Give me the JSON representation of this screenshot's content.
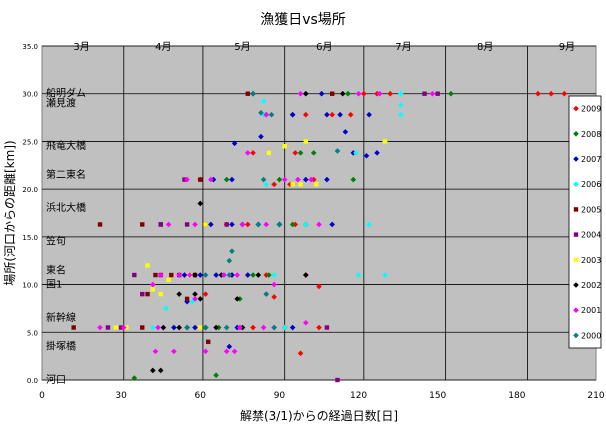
{
  "chart_data": {
    "type": "scatter",
    "title": "漁獲日vs場所",
    "xlabel": "解禁(3/1)からの経過日数[日]",
    "ylabel": "場所(河口からの距離[km])",
    "xlim": [
      0,
      210
    ],
    "ylim": [
      0,
      35
    ],
    "x_ticks": [
      "0",
      "30",
      "60",
      "90",
      "120",
      "150",
      "180",
      "210"
    ],
    "y_ticks": [
      "0.0",
      "5.0",
      "10.0",
      "15.0",
      "20.0",
      "25.0",
      "30.0",
      "35.0"
    ],
    "months": [
      {
        "label": "3月",
        "x": 15
      },
      {
        "label": "4月",
        "x": 46
      },
      {
        "label": "5月",
        "x": 76
      },
      {
        "label": "6月",
        "x": 107
      },
      {
        "label": "7月",
        "x": 137
      },
      {
        "label": "8月",
        "x": 168
      },
      {
        "label": "9月",
        "x": 199
      }
    ],
    "month_boundaries": [
      31,
      61,
      92,
      122,
      153,
      184
    ],
    "places": [
      {
        "label": "船明ダム",
        "y": 30.0
      },
      {
        "label": "瀬見渡",
        "y": 29.0
      },
      {
        "label": "飛竜大橋",
        "y": 24.5
      },
      {
        "label": "第二東名",
        "y": 21.5
      },
      {
        "label": "浜北大橋",
        "y": 18.0
      },
      {
        "label": "笠句",
        "y": 14.5
      },
      {
        "label": "東名",
        "y": 11.5
      },
      {
        "label": "国1",
        "y": 10.0
      },
      {
        "label": "新幹線",
        "y": 6.5
      },
      {
        "label": "掛塚橋",
        "y": 3.5
      },
      {
        "label": "河口",
        "y": 0.0
      }
    ],
    "legend_position": "right",
    "series": [
      {
        "name": "2009",
        "color": "#ff0000",
        "marker": "diamond",
        "points": [
          [
            75,
            5.5
          ],
          [
            80,
            5.5
          ],
          [
            92,
            5.5
          ],
          [
            105,
            5.5
          ],
          [
            62,
            9
          ],
          [
            88,
            8.7
          ],
          [
            100,
            11
          ],
          [
            85,
            11
          ],
          [
            70,
            16.3
          ],
          [
            78,
            16.3
          ],
          [
            96,
            16.3
          ],
          [
            88,
            20.5
          ],
          [
            94,
            20.5
          ],
          [
            80,
            23.8
          ],
          [
            96,
            23.8
          ],
          [
            100,
            27.8
          ],
          [
            110,
            27.8
          ],
          [
            117,
            27.8
          ],
          [
            122,
            30
          ],
          [
            127,
            30
          ],
          [
            132,
            30
          ],
          [
            188,
            30
          ],
          [
            193,
            30
          ],
          [
            198,
            30
          ],
          [
            98,
            2.8
          ],
          [
            105,
            9.8
          ],
          [
            72,
            11
          ],
          [
            60,
            21
          ],
          [
            103,
            21
          ]
        ]
      },
      {
        "name": "2008",
        "color": "#008000",
        "marker": "diamond",
        "points": [
          [
            35,
            0.2
          ],
          [
            66,
            0.5
          ],
          [
            67,
            5.5
          ],
          [
            75,
            8.5
          ],
          [
            80,
            11
          ],
          [
            86,
            11
          ],
          [
            95,
            16.3
          ],
          [
            100,
            16.3
          ],
          [
            98,
            23.8
          ],
          [
            103,
            23.8
          ],
          [
            85,
            27.8
          ],
          [
            95,
            27.8
          ],
          [
            90,
            21
          ],
          [
            118,
            21
          ],
          [
            155,
            30
          ],
          [
            116,
            30
          ],
          [
            70,
            21
          ]
        ]
      },
      {
        "name": "2007",
        "color": "#0000cc",
        "marker": "diamond",
        "points": [
          [
            50,
            5.5
          ],
          [
            58,
            5.5
          ],
          [
            62,
            5.5
          ],
          [
            74,
            5.5
          ],
          [
            95,
            5.5
          ],
          [
            55,
            8.2
          ],
          [
            71,
            3.5
          ],
          [
            54,
            11
          ],
          [
            60,
            11
          ],
          [
            66,
            11
          ],
          [
            72,
            11
          ],
          [
            78,
            11
          ],
          [
            64,
            16.3
          ],
          [
            72,
            16.3
          ],
          [
            82,
            16.3
          ],
          [
            90,
            16.3
          ],
          [
            110,
            16.3
          ],
          [
            65,
            21
          ],
          [
            72,
            21
          ],
          [
            73,
            24.8
          ],
          [
            100,
            21
          ],
          [
            108,
            21
          ],
          [
            118,
            23.8
          ],
          [
            123,
            23.5
          ],
          [
            127,
            23.8
          ],
          [
            95,
            27.8
          ],
          [
            108,
            27.8
          ],
          [
            113,
            27.8
          ],
          [
            124,
            27.8
          ],
          [
            115,
            26
          ],
          [
            106,
            30
          ],
          [
            83,
            25.5
          ],
          [
            62,
            5.5
          ]
        ]
      },
      {
        "name": "2006",
        "color": "#00ffff",
        "marker": "diamond",
        "points": [
          [
            42,
            5.5
          ],
          [
            47,
            7.5
          ],
          [
            57,
            8.2
          ],
          [
            88,
            11
          ],
          [
            120,
            11
          ],
          [
            130,
            11
          ],
          [
            90,
            16.3
          ],
          [
            100,
            16.3
          ],
          [
            124,
            16.3
          ],
          [
            85,
            20.5
          ],
          [
            119,
            23.8
          ],
          [
            130,
            25
          ],
          [
            136,
            27.8
          ],
          [
            136,
            28.8
          ],
          [
            120,
            30
          ],
          [
            136,
            30
          ],
          [
            92,
            5.5
          ],
          [
            84,
            27.8
          ],
          [
            84,
            29.2
          ]
        ]
      },
      {
        "name": "2005",
        "color": "#800000",
        "marker": "square",
        "points": [
          [
            12,
            5.5
          ],
          [
            38,
            5.5
          ],
          [
            40,
            9
          ],
          [
            43,
            11
          ],
          [
            49,
            11
          ],
          [
            58,
            11
          ],
          [
            62,
            16.3
          ],
          [
            22,
            16.3
          ],
          [
            38,
            16.3
          ],
          [
            45,
            16.3
          ],
          [
            60,
            21
          ],
          [
            110,
            30
          ],
          [
            78,
            30
          ],
          [
            63,
            4
          ],
          [
            55,
            8.5
          ]
        ]
      },
      {
        "name": "2004",
        "color": "#800080",
        "marker": "square",
        "points": [
          [
            25,
            5.5
          ],
          [
            30,
            5.5
          ],
          [
            38,
            9
          ],
          [
            45,
            11
          ],
          [
            52,
            11
          ],
          [
            45,
            16.3
          ],
          [
            55,
            16.3
          ],
          [
            70,
            16.3
          ],
          [
            54,
            21
          ],
          [
            108,
            5.5
          ],
          [
            145,
            30
          ],
          [
            150,
            30
          ],
          [
            112,
            0
          ],
          [
            35,
            11
          ]
        ]
      },
      {
        "name": "2003",
        "color": "#ffff00",
        "marker": "square",
        "points": [
          [
            28,
            5.5
          ],
          [
            32,
            5.5
          ],
          [
            45,
            9
          ],
          [
            48,
            10.5
          ],
          [
            40,
            12
          ],
          [
            56,
            11
          ],
          [
            62,
            16.3
          ],
          [
            95,
            20.5
          ],
          [
            98,
            20.5
          ],
          [
            104,
            20.5
          ],
          [
            86,
            23.8
          ],
          [
            92,
            24.5
          ],
          [
            100,
            25
          ],
          [
            130,
            25
          ],
          [
            60,
            5.5
          ],
          [
            42,
            9.5
          ]
        ]
      },
      {
        "name": "2002",
        "color": "#000000",
        "marker": "diamond",
        "points": [
          [
            42,
            1
          ],
          [
            45,
            1
          ],
          [
            46,
            5.5
          ],
          [
            52,
            5.5
          ],
          [
            66,
            5.5
          ],
          [
            76,
            5.5
          ],
          [
            52,
            9
          ],
          [
            58,
            9
          ],
          [
            58,
            11
          ],
          [
            68,
            11
          ],
          [
            82,
            11
          ],
          [
            60,
            18.5
          ],
          [
            76,
            16.3
          ],
          [
            90,
            16.3
          ],
          [
            80,
            30
          ],
          [
            100,
            30
          ],
          [
            114,
            30
          ],
          [
            74,
            8.5
          ],
          [
            100,
            11
          ],
          [
            60,
            8.5
          ],
          [
            55,
            5.5
          ]
        ]
      },
      {
        "name": "2001",
        "color": "#ff00ff",
        "marker": "diamond",
        "points": [
          [
            22,
            5.5
          ],
          [
            31,
            5.5
          ],
          [
            44,
            5.5
          ],
          [
            55,
            5.5
          ],
          [
            75,
            5.5
          ],
          [
            84,
            5.5
          ],
          [
            88,
            5.5
          ],
          [
            43,
            3
          ],
          [
            50,
            3
          ],
          [
            62,
            3
          ],
          [
            70,
            3
          ],
          [
            73,
            3
          ],
          [
            42,
            10
          ],
          [
            45,
            11
          ],
          [
            52,
            11
          ],
          [
            56,
            11
          ],
          [
            69,
            11
          ],
          [
            74,
            11
          ],
          [
            85,
            9
          ],
          [
            88,
            10
          ],
          [
            48,
            16.3
          ],
          [
            58,
            16.3
          ],
          [
            76,
            16.3
          ],
          [
            85,
            16.3
          ],
          [
            105,
            16.3
          ],
          [
            55,
            21
          ],
          [
            64,
            21
          ],
          [
            92,
            21
          ],
          [
            97,
            21
          ],
          [
            102,
            21
          ],
          [
            78,
            23.8
          ],
          [
            85,
            27.8
          ],
          [
            98,
            30
          ],
          [
            120,
            30
          ],
          [
            128,
            30
          ],
          [
            148,
            30
          ],
          [
            58,
            8.5
          ],
          [
            100,
            6
          ]
        ]
      },
      {
        "name": "2000",
        "color": "#008080",
        "marker": "diamond",
        "points": [
          [
            55,
            5.5
          ],
          [
            62,
            5.5
          ],
          [
            70,
            5.5
          ],
          [
            88,
            5.5
          ],
          [
            62,
            11
          ],
          [
            71,
            11
          ],
          [
            71,
            12.5
          ],
          [
            72,
            13.5
          ],
          [
            85,
            9
          ],
          [
            82,
            16.3
          ],
          [
            90,
            16.3
          ],
          [
            84,
            21
          ],
          [
            80,
            30
          ],
          [
            83,
            28
          ],
          [
            87,
            27.8
          ],
          [
            112,
            24
          ]
        ]
      }
    ]
  }
}
